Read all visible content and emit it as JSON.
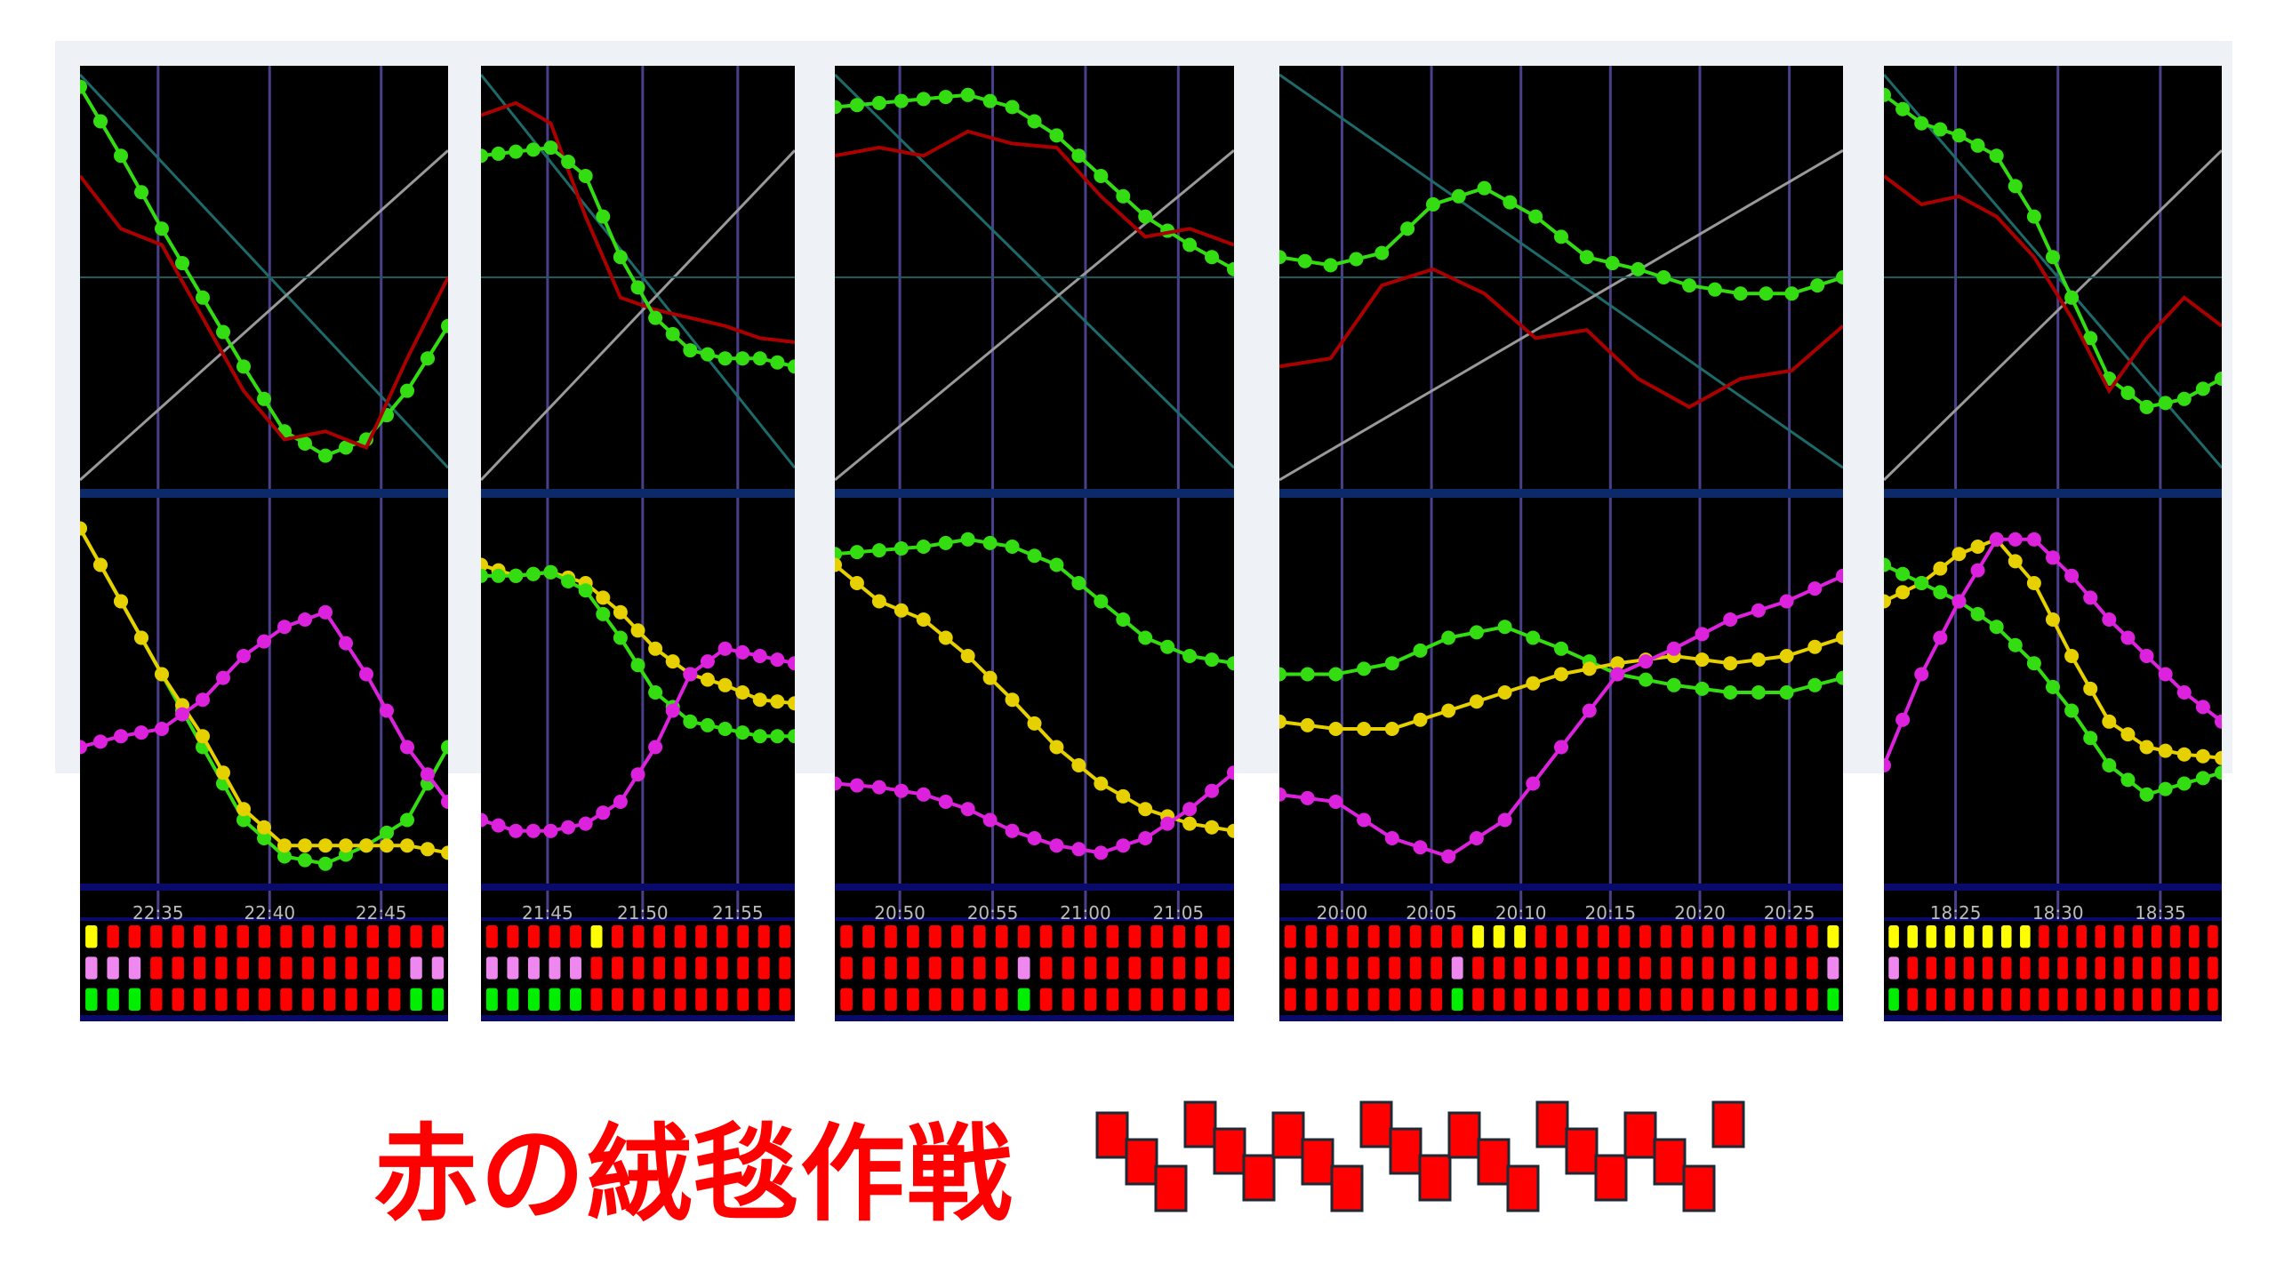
{
  "title": "赤の絨毯作戦",
  "colors": {
    "green": "#33dd11",
    "red": "#aa0000",
    "yellow": "#e6d000",
    "magenta": "#dd22dd",
    "cell_red": "#ff0000",
    "cell_yellow": "#ffff00",
    "cell_pink": "#ee88ee",
    "cell_green": "#00ee00",
    "grid": "#4a3f8a",
    "axis_band": "#0a0a6a"
  },
  "chart_data": [
    {
      "type": "line",
      "xtick_labels": [
        "22:35",
        "22:40",
        "22:45"
      ],
      "upper": {
        "series": [
          {
            "color": "green",
            "markers": true,
            "values": [
              97,
              80,
              62,
              45,
              28,
              12,
              6,
              10,
              22,
              38
            ]
          },
          {
            "color": "red",
            "values": [
              75,
              62,
              58,
              40,
              22,
              10,
              12,
              8,
              30,
              50
            ]
          }
        ]
      },
      "lower": {
        "series": [
          {
            "color": "green",
            "markers": true,
            "values": [
              95,
              75,
              55,
              35,
              15,
              5,
              3,
              8,
              15,
              35
            ]
          },
          {
            "color": "yellow",
            "markers": true,
            "values": [
              95,
              75,
              55,
              38,
              18,
              8,
              8,
              8,
              8,
              6
            ]
          },
          {
            "color": "magenta",
            "markers": true,
            "values": [
              35,
              38,
              40,
              48,
              60,
              68,
              72,
              55,
              35,
              20
            ]
          }
        ]
      },
      "signal_rows": [
        "YRRRRRRRRRRRRRRRR",
        "PPPRRRRRRRRRRRRPP",
        "GGGRRRRRRRRRRRRGG"
      ]
    },
    {
      "type": "line",
      "xtick_labels": [
        "21:45",
        "21:50",
        "21:55"
      ],
      "upper": {
        "series": [
          {
            "color": "red",
            "values": [
              90,
              93,
              88,
              65,
              45,
              42,
              40,
              38,
              35,
              34
            ]
          },
          {
            "color": "green",
            "markers": true,
            "values": [
              80,
              81,
              82,
              75,
              55,
              40,
              32,
              30,
              30,
              28
            ]
          }
        ]
      },
      "lower": {
        "series": [
          {
            "color": "yellow",
            "markers": true,
            "values": [
              85,
              82,
              83,
              80,
              72,
              62,
              55,
              52,
              48,
              47
            ]
          },
          {
            "color": "green",
            "markers": true,
            "values": [
              82,
              82,
              83,
              78,
              65,
              50,
              42,
              40,
              38,
              38
            ]
          },
          {
            "color": "magenta",
            "markers": true,
            "values": [
              15,
              12,
              12,
              14,
              20,
              35,
              55,
              62,
              60,
              58
            ]
          }
        ]
      },
      "signal_rows": [
        "RRRRRYRRRRRRRRR",
        "PPPPPRRRRRRRRRR",
        "GGGGGRRRRRRRRRR"
      ]
    },
    {
      "type": "line",
      "xtick_labels": [
        "20:50",
        "20:55",
        "21:00",
        "21:05"
      ],
      "upper": {
        "series": [
          {
            "color": "green",
            "markers": true,
            "values": [
              92,
              93,
              94,
              95,
              92,
              85,
              75,
              65,
              58,
              52
            ]
          },
          {
            "color": "red",
            "values": [
              80,
              82,
              80,
              86,
              83,
              82,
              70,
              60,
              62,
              58
            ]
          }
        ]
      },
      "lower": {
        "series": [
          {
            "color": "green",
            "markers": true,
            "values": [
              88,
              89,
              90,
              92,
              90,
              85,
              75,
              65,
              60,
              58
            ]
          },
          {
            "color": "yellow",
            "markers": true,
            "values": [
              85,
              75,
              70,
              60,
              48,
              35,
              25,
              18,
              14,
              12
            ]
          },
          {
            "color": "magenta",
            "markers": true,
            "values": [
              25,
              24,
              22,
              18,
              12,
              8,
              6,
              10,
              18,
              28
            ]
          }
        ]
      },
      "signal_rows": [
        "RRRRRRRRRRRRRRRRRR",
        "RRRRRRRRPRRRRRRRRR",
        "RRRRRRRRGRRRRRRRRR"
      ]
    },
    {
      "type": "line",
      "xtick_labels": [
        "20:00",
        "20:05",
        "20:10",
        "20:15",
        "20:20",
        "20:25"
      ],
      "upper": {
        "series": [
          {
            "color": "green",
            "markers": true,
            "values": [
              55,
              53,
              56,
              68,
              72,
              65,
              55,
              52,
              48,
              46,
              46,
              50
            ]
          },
          {
            "color": "red",
            "values": [
              28,
              30,
              48,
              52,
              46,
              35,
              37,
              25,
              18,
              25,
              27,
              38
            ]
          }
        ]
      },
      "lower": {
        "series": [
          {
            "color": "green",
            "markers": true,
            "values": [
              55,
              55,
              58,
              65,
              68,
              62,
              55,
              52,
              50,
              50,
              54
            ]
          },
          {
            "color": "yellow",
            "markers": true,
            "values": [
              42,
              40,
              40,
              45,
              50,
              55,
              58,
              60,
              58,
              60,
              65
            ]
          },
          {
            "color": "magenta",
            "markers": true,
            "values": [
              22,
              20,
              10,
              5,
              15,
              35,
              55,
              62,
              70,
              75,
              82
            ]
          }
        ]
      },
      "signal_rows": [
        "RRRRRRRRRYYYRRRRRRRRRRRRRRY",
        "RRRRRRRRPRRRRRRRRRRRRRRRRRP",
        "RRRRRRRRGRRRRRRRRRRRRRRRRRG"
      ]
    },
    {
      "type": "line",
      "xtick_labels": [
        "18:25",
        "18:30",
        "18:35"
      ],
      "upper": {
        "series": [
          {
            "color": "green",
            "markers": true,
            "values": [
              95,
              88,
              85,
              80,
              65,
              45,
              25,
              18,
              20,
              25
            ]
          },
          {
            "color": "red",
            "values": [
              75,
              68,
              70,
              65,
              55,
              40,
              22,
              35,
              45,
              38
            ]
          }
        ]
      },
      "lower": {
        "series": [
          {
            "color": "yellow",
            "markers": true,
            "values": [
              75,
              80,
              88,
              92,
              80,
              60,
              42,
              35,
              33,
              32
            ]
          },
          {
            "color": "green",
            "markers": true,
            "values": [
              85,
              80,
              75,
              68,
              58,
              45,
              30,
              22,
              25,
              28
            ]
          },
          {
            "color": "magenta",
            "markers": true,
            "values": [
              30,
              55,
              75,
              92,
              92,
              82,
              70,
              60,
              50,
              42
            ]
          }
        ]
      },
      "signal_rows": [
        "YYYYYYYYRRRRRRRRRR",
        "PRRRRRRRRRRRRRRRRR",
        "GRRRRRRRRRRRRRRRRR"
      ]
    }
  ]
}
